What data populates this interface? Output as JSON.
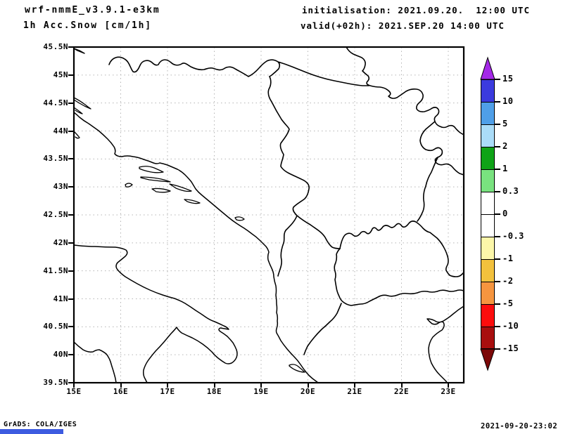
{
  "header": {
    "model_title": "wrf-nmmE_v3.9.1-e3km",
    "field_title": "1h Acc.Snow [cm/1h]",
    "init_line": "initialisation: 2021.09.20.  12:00 UTC",
    "valid_line": "valid(+02h): 2021.SEP.20 14:00 UTC"
  },
  "footer": {
    "credit": "GrADS: COLA/IGES",
    "timestamp": "2021-09-20-23:02",
    "bottom_bar_color": "#3d5be0"
  },
  "chart_data": {
    "type": "heatmap",
    "subtype": "geographic-model-field-map",
    "title": "1h Acc.Snow [cm/1h]",
    "model": "wrf-nmmE_v3.9.1-e3km",
    "init_time": "2021.09.20. 12:00 UTC",
    "valid_time": "2021.SEP.20 14:00 UTC (+02h)",
    "region": "Balkans / Adriatic (15E-23E, 39.5N-45.5N)",
    "x_axis": {
      "ticks": [
        "15E",
        "16E",
        "17E",
        "18E",
        "19E",
        "20E",
        "21E",
        "22E",
        "23E"
      ]
    },
    "y_axis": {
      "ticks": [
        "45.5N",
        "45N",
        "44.5N",
        "44N",
        "43.5N",
        "43N",
        "42.5N",
        "42N",
        "41.5N",
        "41N",
        "40.5N",
        "40N",
        "39.5N"
      ]
    },
    "grid": true,
    "grid_color": "#b4b4b4",
    "colorbar": {
      "tick_labels": [
        "15",
        "10",
        "5",
        "2",
        "1",
        "0.3",
        "0",
        "-0.3",
        "-1",
        "-2",
        "-5",
        "-10",
        "-15"
      ],
      "segment_colors": [
        "#3b3bde",
        "#4f9fe8",
        "#aadcf8",
        "#0fa317",
        "#79e27f",
        "#ffffff",
        "#ffffff",
        "#fcf7a9",
        "#f2c13d",
        "#f6953f",
        "#fc0d0d",
        "#a80f0f"
      ],
      "over_color": "#a428e8",
      "under_color": "#7c0808"
    },
    "field": "No snow accumulation shaded anywhere in the domain (field is zero / blank map)"
  }
}
